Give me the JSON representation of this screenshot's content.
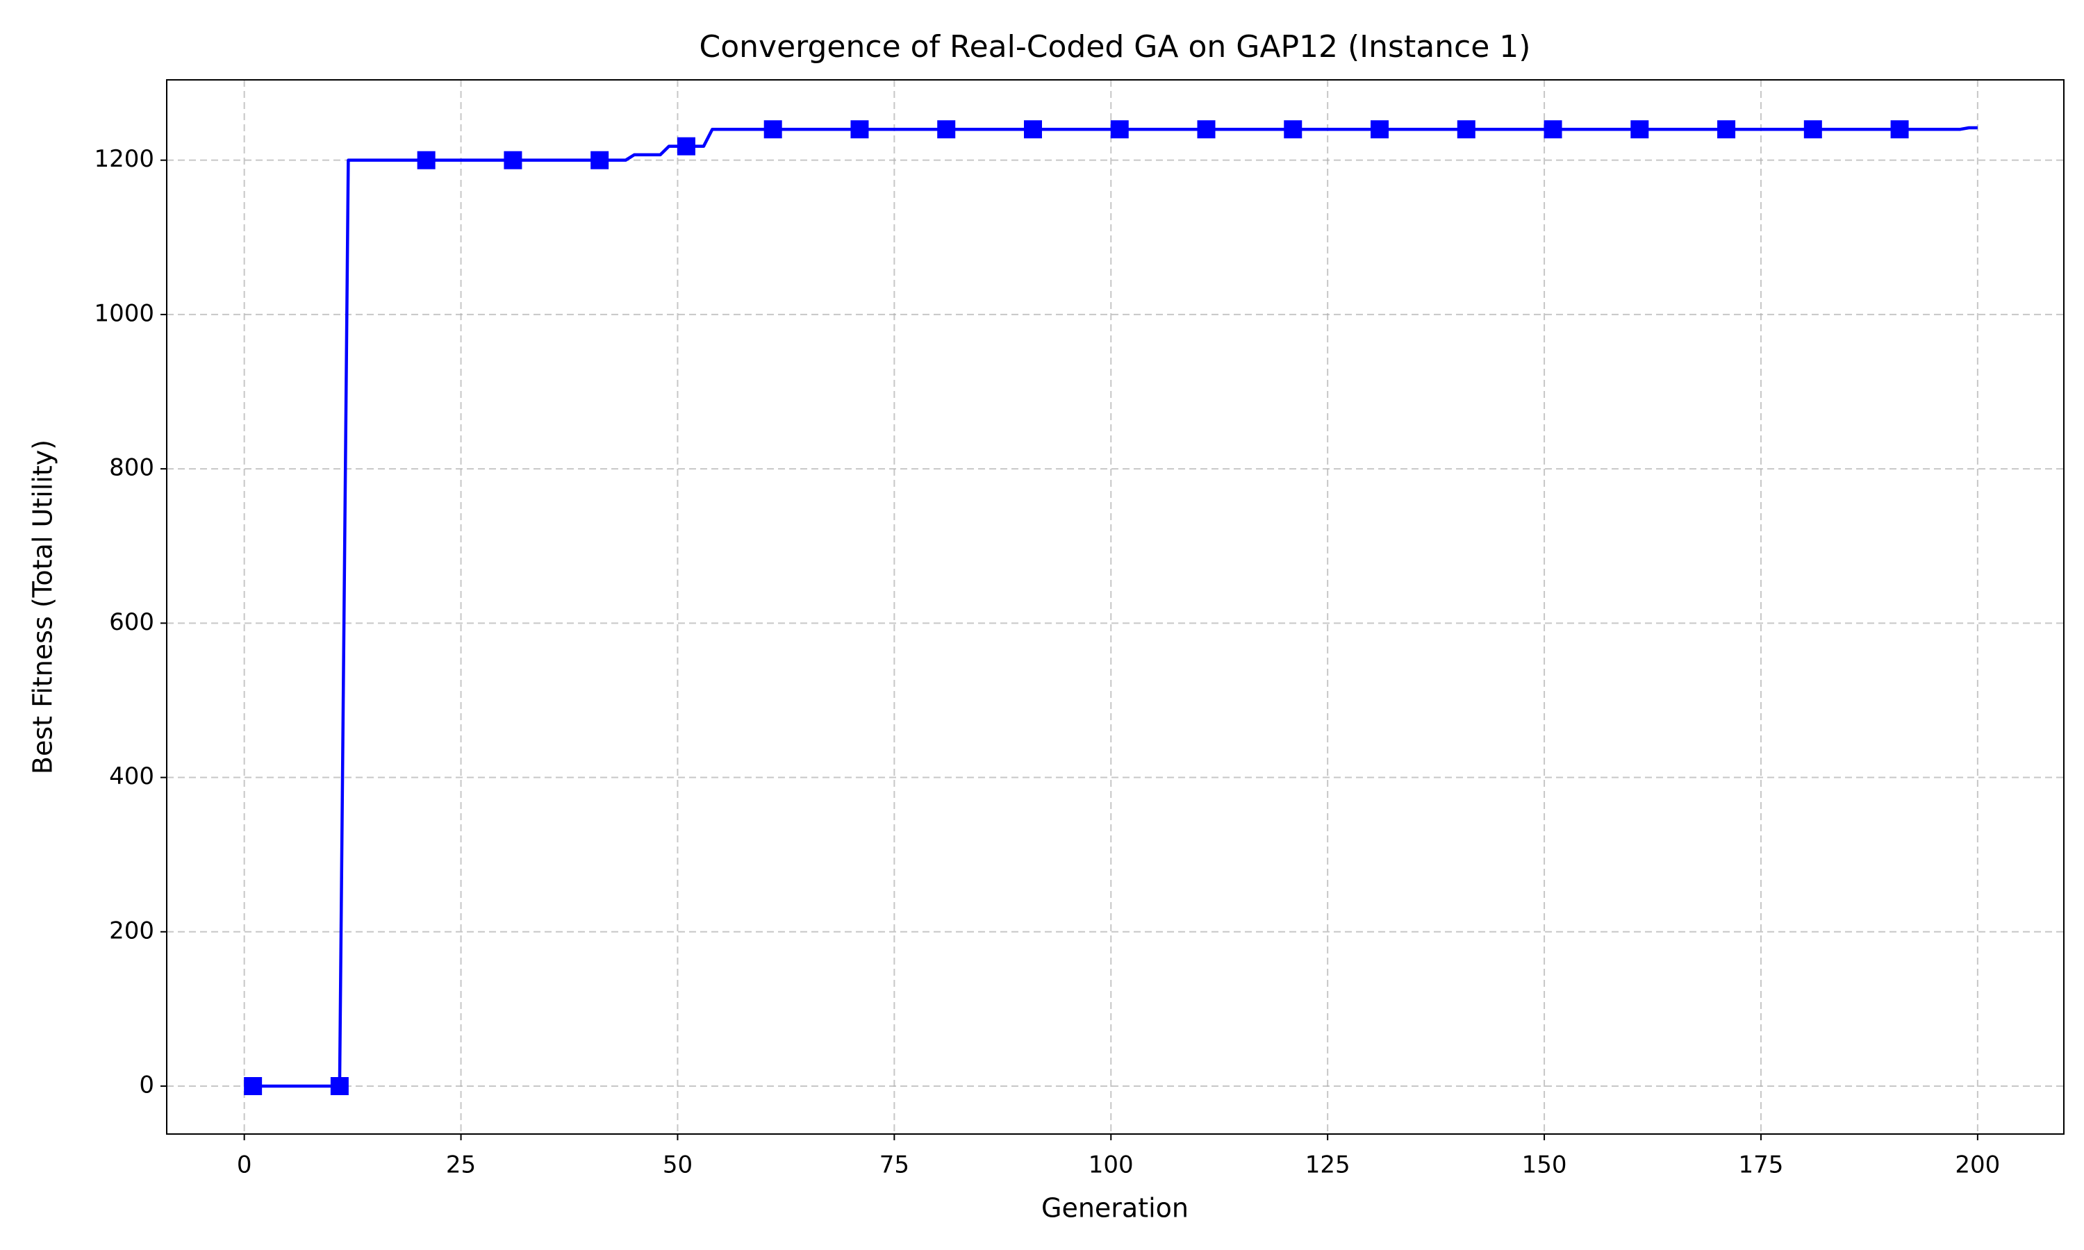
{
  "chart_data": {
    "type": "line",
    "title": "Convergence of Real-Coded GA on GAP12 (Instance 1)",
    "xlabel": "Generation",
    "ylabel": "Best Fitness (Total Utility)",
    "x": [
      1,
      11,
      12,
      21,
      31,
      41,
      44,
      45,
      48,
      49,
      51,
      53,
      54,
      61,
      71,
      81,
      91,
      101,
      111,
      121,
      131,
      141,
      151,
      161,
      171,
      181,
      191,
      198,
      199,
      200
    ],
    "series": [
      {
        "color": "#0000ff",
        "marker": "square",
        "markevery": 10,
        "values": [
          0,
          0,
          1200,
          1200,
          1200,
          1200,
          1200,
          1207,
          1207,
          1218,
          1218,
          1218,
          1240,
          1240,
          1240,
          1240,
          1240,
          1240,
          1240,
          1240,
          1240,
          1240,
          1240,
          1240,
          1240,
          1240,
          1240,
          1240,
          1242,
          1242
        ]
      }
    ],
    "xlim": [
      -8.95,
      209.95
    ],
    "ylim": [
      -62.1,
      1304.1
    ],
    "xticks": [
      0,
      25,
      50,
      75,
      100,
      125,
      150,
      175,
      200
    ],
    "yticks": [
      0,
      200,
      400,
      600,
      800,
      1000,
      1200
    ],
    "grid": true
  }
}
